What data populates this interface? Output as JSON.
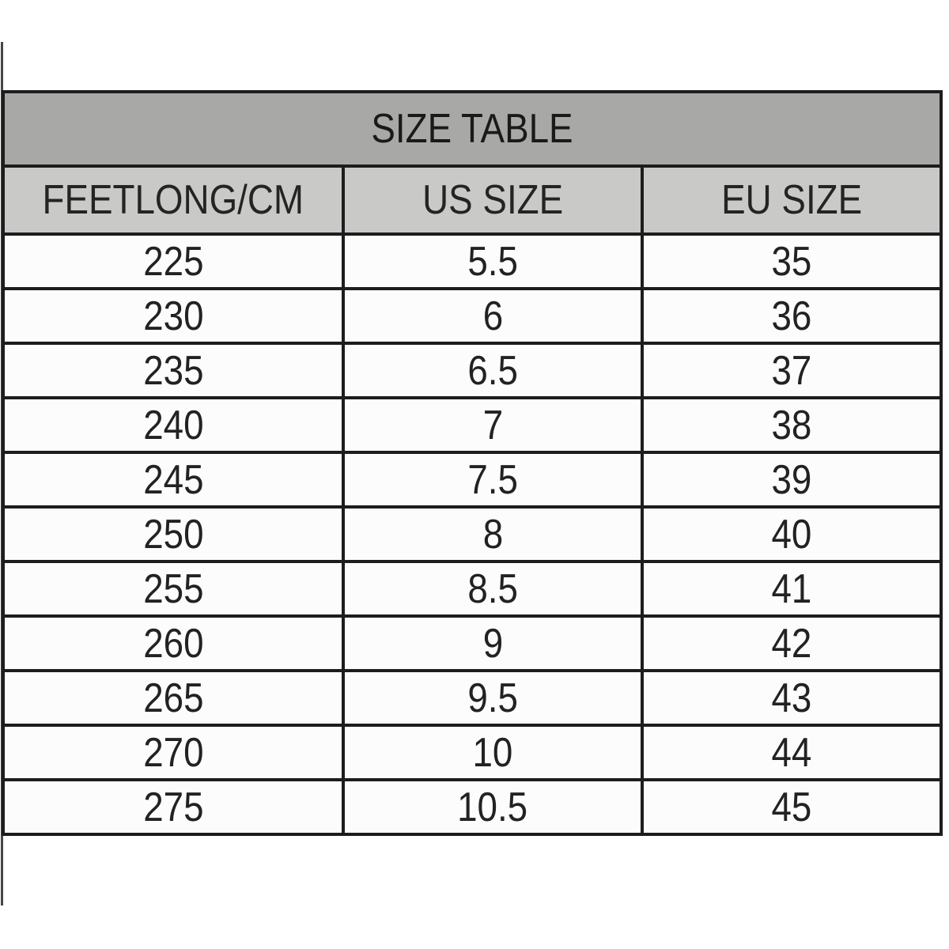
{
  "table": {
    "title": "SIZE TABLE",
    "columns": [
      "FEETLONG/CM",
      "US SIZE",
      "EU SIZE"
    ],
    "rows": [
      [
        "225",
        "5.5",
        "35"
      ],
      [
        "230",
        "6",
        "36"
      ],
      [
        "235",
        "6.5",
        "37"
      ],
      [
        "240",
        "7",
        "38"
      ],
      [
        "245",
        "7.5",
        "39"
      ],
      [
        "250",
        "8",
        "40"
      ],
      [
        "255",
        "8.5",
        "41"
      ],
      [
        "260",
        "9",
        "42"
      ],
      [
        "265",
        "9.5",
        "43"
      ],
      [
        "270",
        "10",
        "44"
      ],
      [
        "275",
        "10.5",
        "45"
      ]
    ],
    "colors": {
      "title_bg": "#a8a8a6",
      "header_bg": "#c9c9c7",
      "row_bg": "#fcfcfc",
      "border": "#1d1d1d",
      "text": "#1e1e1e"
    }
  },
  "chart_data": {
    "type": "table",
    "title": "SIZE TABLE",
    "columns": [
      "FEETLONG/CM",
      "US SIZE",
      "EU SIZE"
    ],
    "rows": [
      [
        225,
        5.5,
        35
      ],
      [
        230,
        6,
        36
      ],
      [
        235,
        6.5,
        37
      ],
      [
        240,
        7,
        38
      ],
      [
        245,
        7.5,
        39
      ],
      [
        250,
        8,
        40
      ],
      [
        255,
        8.5,
        41
      ],
      [
        260,
        9,
        42
      ],
      [
        265,
        9.5,
        43
      ],
      [
        270,
        10,
        44
      ],
      [
        275,
        10.5,
        45
      ]
    ],
    "layout": {
      "title_row_background": "#a8a8a6",
      "header_row_background": "#c9c9c7",
      "body_background": "#fcfcfc",
      "grid": "on"
    }
  }
}
